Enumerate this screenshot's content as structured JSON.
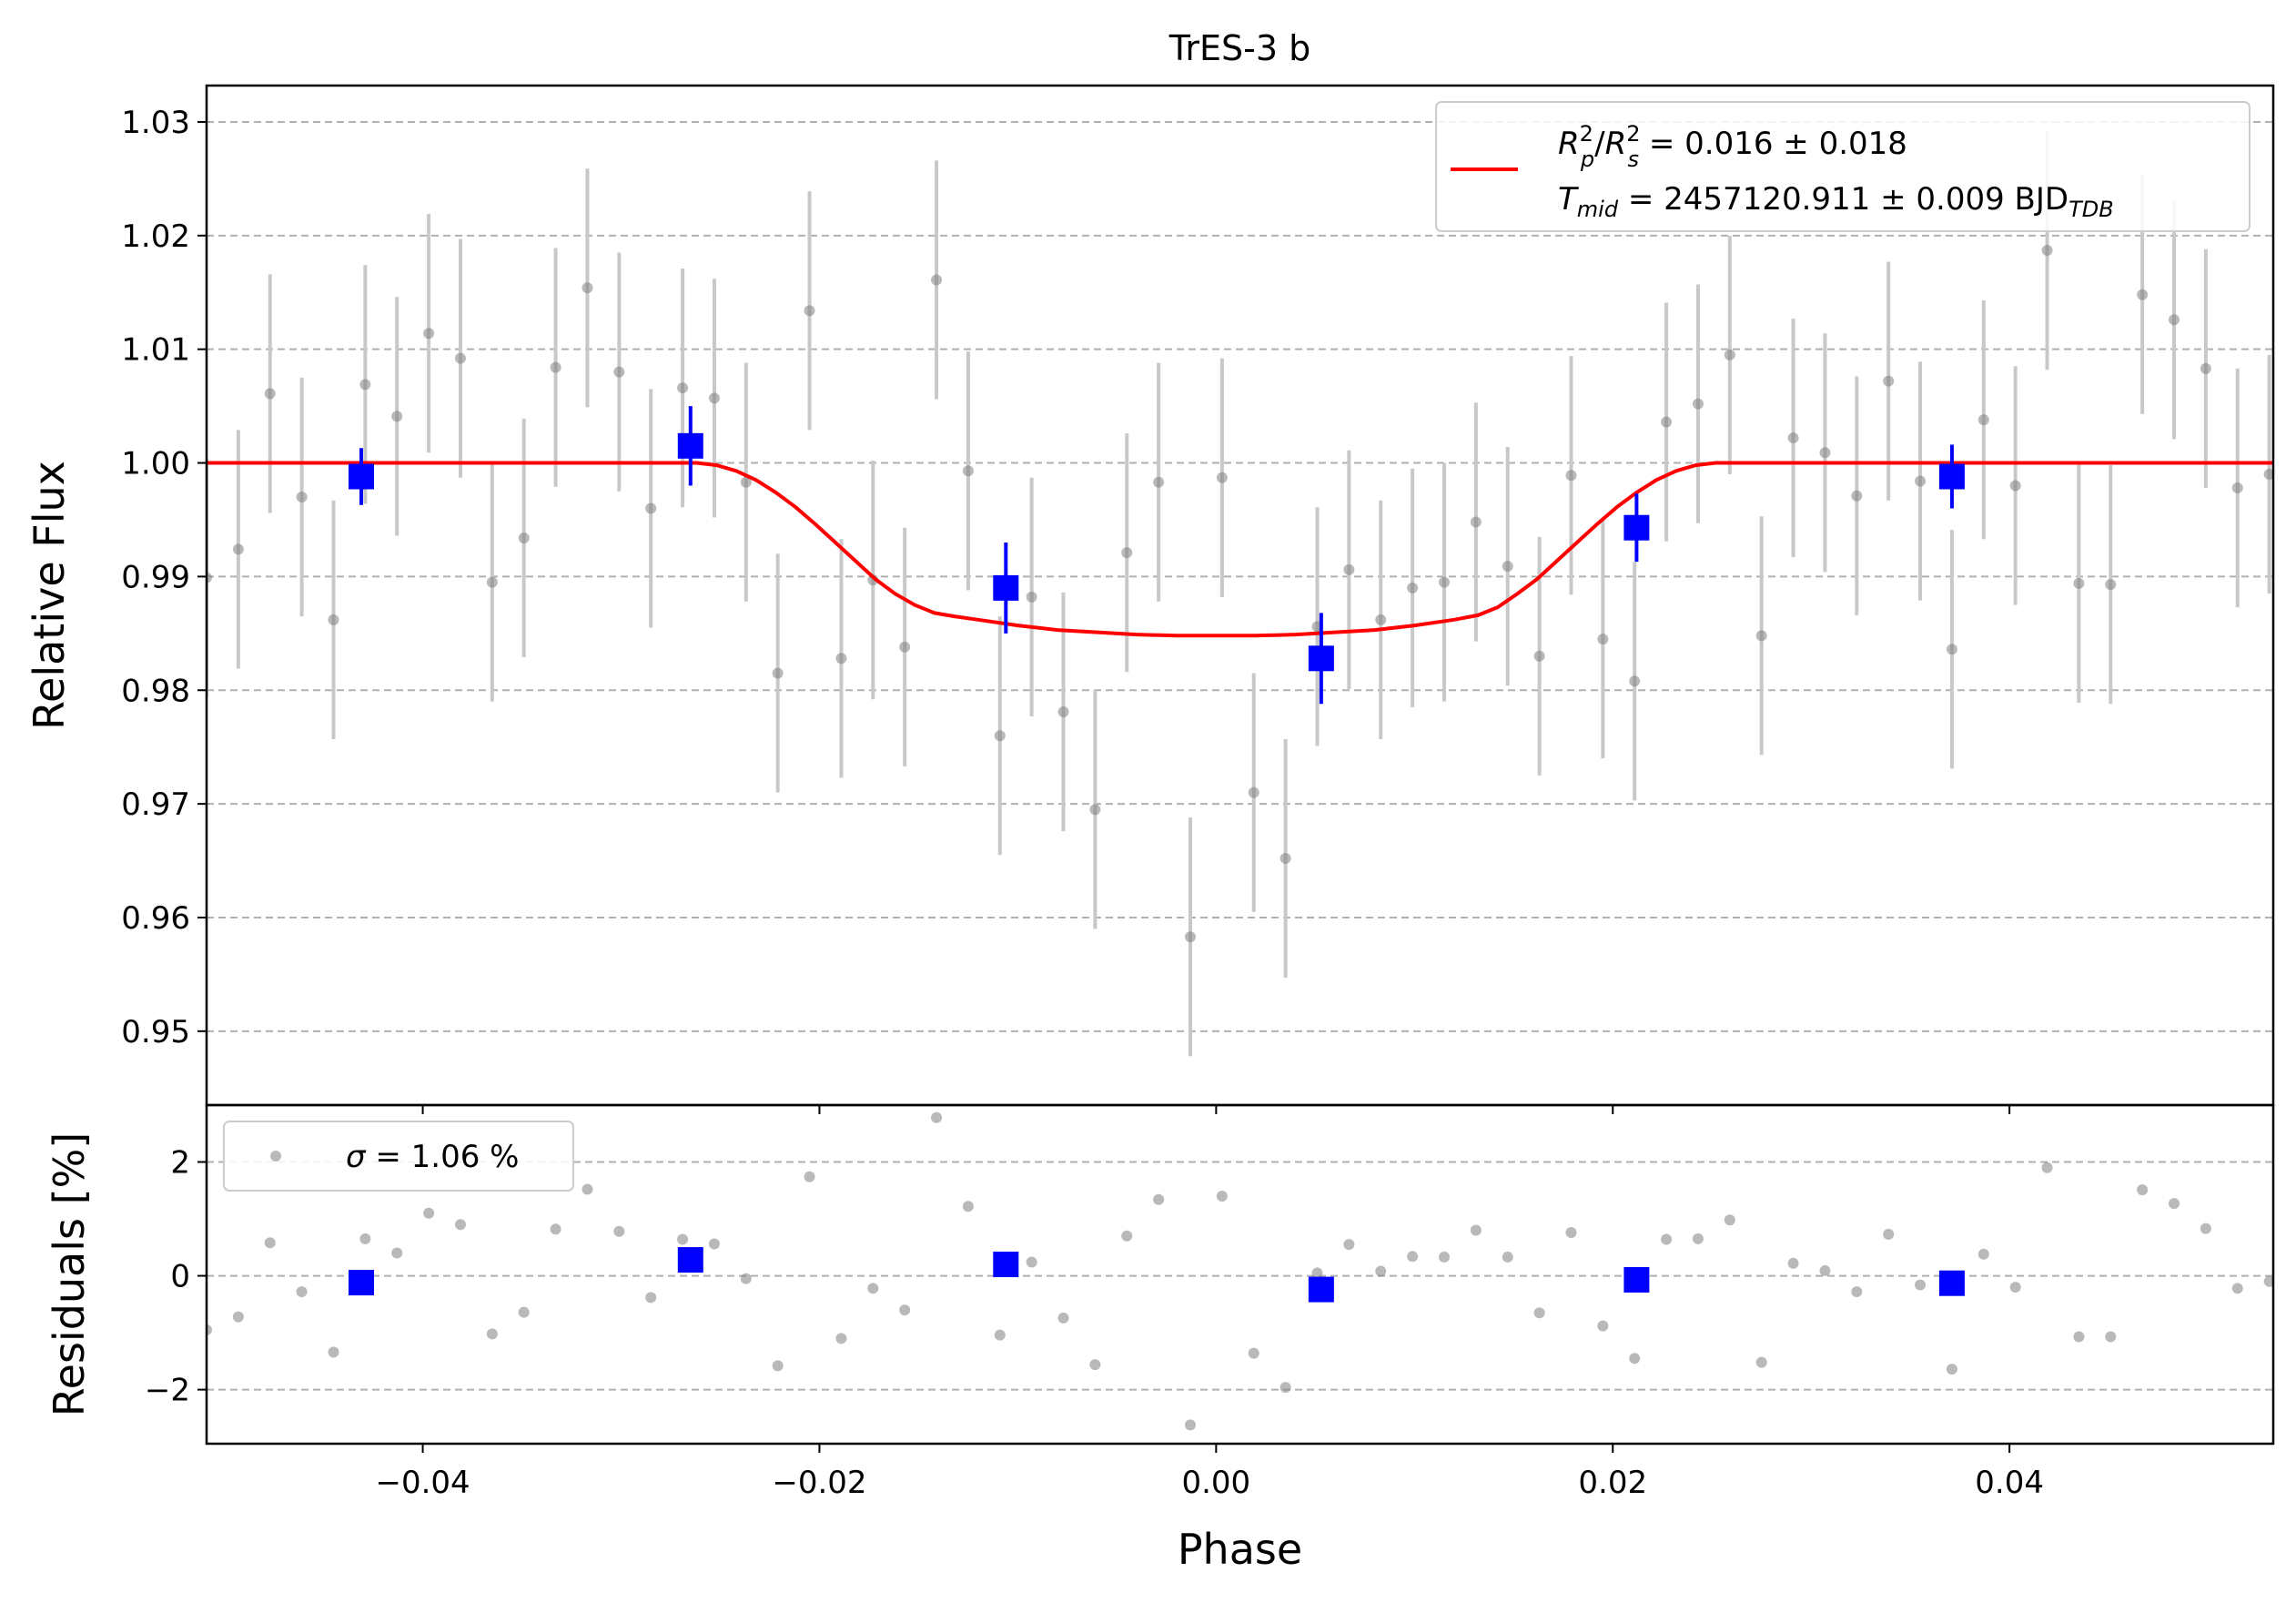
{
  "chart_data": [
    {
      "type": "scatter",
      "panel": "main",
      "title": "TrES-3 b",
      "xlabel": "",
      "ylabel": "Relative Flux",
      "xlim": [
        -0.0509,
        0.0533
      ],
      "ylim": [
        0.9435,
        1.0332
      ],
      "xticks": [
        -0.04,
        -0.02,
        0.0,
        0.02,
        0.04
      ],
      "xtick_labels": [
        "",
        "",
        "",
        "",
        ""
      ],
      "yticks": [
        0.95,
        0.96,
        0.97,
        0.98,
        0.99,
        1.0,
        1.01,
        1.02,
        1.03
      ],
      "ytick_labels": [
        "0.95",
        "0.96",
        "0.97",
        "0.98",
        "0.99",
        "1.00",
        "1.01",
        "1.02",
        "1.03"
      ],
      "grid": "y-dashed",
      "legend_position": "top-right",
      "colors": {
        "raw": "#808080",
        "errorbar_raw": "#c8c8c8",
        "binned": "#0000ff",
        "model": "#ff0000"
      },
      "series": [
        {
          "kind": "raw",
          "error": 0.0105,
          "x": [
            -0.0509,
            -0.0493,
            -0.0477,
            -0.0461,
            -0.0445,
            -0.0429,
            -0.0413,
            -0.0397,
            -0.0381,
            -0.0365,
            -0.0349,
            -0.0333,
            -0.0317,
            -0.0301,
            -0.0285,
            -0.0269,
            -0.0253,
            -0.0237,
            -0.0221,
            -0.0205,
            -0.0189,
            -0.0173,
            -0.0157,
            -0.0141,
            -0.0125,
            -0.0109,
            -0.0093,
            -0.0077,
            -0.0061,
            -0.0045,
            -0.0029,
            -0.0013,
            0.0003,
            0.0019,
            0.0035,
            0.0051,
            0.0067,
            0.0083,
            0.0099,
            0.0115,
            0.0131,
            0.0147,
            0.0163,
            0.0179,
            0.0195,
            0.0211,
            0.0227,
            0.0243,
            0.0259,
            0.0275,
            0.0291,
            0.0307,
            0.0323,
            0.0339,
            0.0355,
            0.0371,
            0.0387,
            0.0403,
            0.0419,
            0.0435,
            0.0451,
            0.0467,
            0.0483,
            0.0499,
            0.0515,
            0.0531
          ],
          "y": [
            0.9899,
            0.9924,
            1.0061,
            0.997,
            0.9862,
            1.0069,
            1.0041,
            1.0114,
            1.0092,
            0.9895,
            0.9934,
            1.0084,
            1.0154,
            1.008,
            0.996,
            1.0066,
            1.0057,
            0.9983,
            0.9815,
            1.0134,
            0.9828,
            0.9897,
            0.9838,
            1.0161,
            0.9993,
            0.976,
            0.9882,
            0.9781,
            0.9695,
            0.9921,
            0.9983,
            0.9583,
            0.9987,
            0.971,
            0.9652,
            0.9856,
            0.9906,
            0.9862,
            0.989,
            0.9895,
            0.9948,
            0.9909,
            0.983,
            0.9989,
            0.9845,
            0.9808,
            1.0036,
            1.0052,
            1.0095,
            0.9848,
            1.0022,
            1.0009,
            0.9971,
            1.0072,
            0.9984,
            0.9836,
            1.0038,
            0.998,
            1.0187,
            0.9894,
            0.9893,
            1.0148,
            1.0126,
            1.0083,
            0.9978,
            0.999
          ]
        },
        {
          "kind": "binned",
          "x": [
            -0.0431,
            -0.0265,
            -0.0106,
            0.0053,
            0.0212,
            0.0371
          ],
          "y": [
            0.9988,
            1.0015,
            0.989,
            0.9828,
            0.9943,
            0.9988
          ],
          "err": [
            0.0025,
            0.0035,
            0.004,
            0.004,
            0.003,
            0.0028
          ]
        },
        {
          "kind": "model",
          "name": "",
          "x": [
            -0.0509,
            -0.0262,
            -0.0252,
            -0.0242,
            -0.0232,
            -0.0222,
            -0.0212,
            -0.0202,
            -0.0192,
            -0.0182,
            -0.0172,
            -0.0162,
            -0.0152,
            -0.0142,
            -0.0132,
            -0.012,
            -0.01,
            -0.008,
            -0.006,
            -0.004,
            -0.002,
            0.0,
            0.002,
            0.004,
            0.006,
            0.008,
            0.01,
            0.012,
            0.0132,
            0.0142,
            0.0152,
            0.0162,
            0.0172,
            0.0182,
            0.0192,
            0.0202,
            0.0212,
            0.0222,
            0.0232,
            0.0242,
            0.0252,
            0.0262,
            0.0533
          ],
          "y": [
            1.0,
            1.0,
            0.9998,
            0.9993,
            0.9985,
            0.9974,
            0.9961,
            0.9946,
            0.993,
            0.9914,
            0.9898,
            0.9885,
            0.9875,
            0.9868,
            0.9865,
            0.9862,
            0.9857,
            0.9853,
            0.9851,
            0.9849,
            0.9848,
            0.9848,
            0.9848,
            0.9849,
            0.9851,
            0.9853,
            0.9857,
            0.9862,
            0.9866,
            0.9873,
            0.9885,
            0.9898,
            0.9914,
            0.993,
            0.9946,
            0.9961,
            0.9974,
            0.9985,
            0.9993,
            0.9998,
            1.0,
            1.0,
            1.0
          ]
        }
      ],
      "legend": {
        "line1": {
          "ratio_var": "R",
          "ratio_sub1": "p",
          "ratio_sub2": "s",
          "ratio_sup": "2",
          "text": " = 0.016 ± 0.018"
        },
        "line2": {
          "var": "T",
          "sub": "mid",
          "text": " = 2457120.911 ± 0.009 BJD",
          "unit_sub": "TDB"
        }
      }
    },
    {
      "type": "scatter",
      "panel": "residuals",
      "xlabel": "Phase",
      "ylabel": "Residuals [%]",
      "xlim": [
        -0.0509,
        0.0533
      ],
      "ylim": [
        -2.95,
        3.0
      ],
      "xticks": [
        -0.04,
        -0.02,
        0.0,
        0.02,
        0.04
      ],
      "xtick_labels": [
        "−0.04",
        "−0.02",
        "0.00",
        "0.02",
        "0.04"
      ],
      "yticks": [
        -2,
        0,
        2
      ],
      "ytick_labels": [
        "−2",
        "0",
        "2"
      ],
      "grid": "y-dashed",
      "legend_position": "top-left",
      "legend": {
        "var": "σ",
        "text": " = 1.06 %"
      },
      "series": [
        {
          "kind": "raw",
          "x": [
            -0.0509,
            -0.0493,
            -0.0477,
            -0.0461,
            -0.0445,
            -0.0429,
            -0.0413,
            -0.0397,
            -0.0381,
            -0.0365,
            -0.0349,
            -0.0333,
            -0.0317,
            -0.0301,
            -0.0285,
            -0.0269,
            -0.0253,
            -0.0237,
            -0.0221,
            -0.0205,
            -0.0189,
            -0.0173,
            -0.0157,
            -0.0141,
            -0.0125,
            -0.0109,
            -0.0093,
            -0.0077,
            -0.0061,
            -0.0045,
            -0.0029,
            -0.0013,
            0.0003,
            0.0019,
            0.0035,
            0.0051,
            0.0067,
            0.0083,
            0.0099,
            0.0115,
            0.0131,
            0.0147,
            0.0163,
            0.0179,
            0.0195,
            0.0211,
            0.0227,
            0.0243,
            0.0259,
            0.0275,
            0.0291,
            0.0307,
            0.0323,
            0.0339,
            0.0355,
            0.0371,
            0.0387,
            0.0403,
            0.0419,
            0.0435,
            0.0451,
            0.0467,
            0.0483,
            0.0499,
            0.0515,
            0.0531
          ],
          "y": [
            -0.95,
            -0.72,
            0.58,
            -0.28,
            -1.34,
            0.65,
            0.4,
            1.1,
            0.9,
            -1.02,
            -0.64,
            0.82,
            1.52,
            0.78,
            -0.38,
            0.64,
            0.56,
            -0.05,
            -1.58,
            1.74,
            -1.1,
            -0.22,
            -0.6,
            2.78,
            1.22,
            -1.04,
            0.24,
            -0.74,
            -1.56,
            0.7,
            1.34,
            -2.62,
            1.4,
            -1.36,
            -1.96,
            0.05,
            0.55,
            0.08,
            0.34,
            0.33,
            0.8,
            0.33,
            -0.65,
            0.76,
            -0.88,
            -1.45,
            0.64,
            0.65,
            0.98,
            -1.52,
            0.22,
            0.09,
            -0.28,
            0.73,
            -0.16,
            -1.64,
            0.38,
            -0.2,
            1.9,
            -1.07,
            -1.07,
            1.51,
            1.27,
            0.83,
            -0.22,
            -0.1
          ]
        },
        {
          "kind": "binned",
          "x": [
            -0.0431,
            -0.0265,
            -0.0106,
            0.0053,
            0.0212,
            0.0371
          ],
          "y": [
            -0.12,
            0.28,
            0.2,
            -0.24,
            -0.07,
            -0.13
          ]
        }
      ]
    }
  ]
}
